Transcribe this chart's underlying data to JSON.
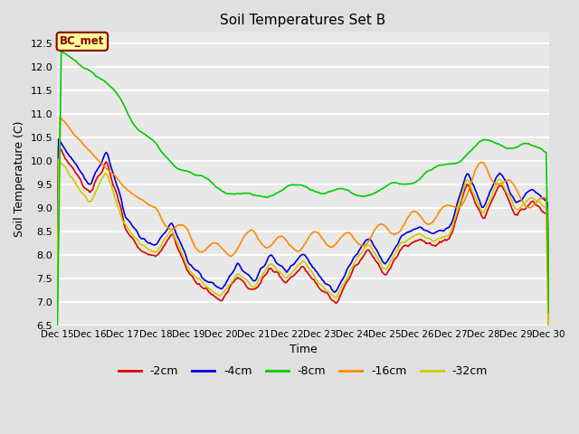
{
  "title": "Soil Temperatures Set B",
  "xlabel": "Time",
  "ylabel": "Soil Temperature (C)",
  "ylim": [
    6.5,
    12.75
  ],
  "xlim": [
    0,
    360
  ],
  "background_color": "#e0e0e0",
  "plot_bg_color": "#e8e8e8",
  "grid_color": "#ffffff",
  "annotation_text": "BC_met",
  "annotation_bg": "#ffff99",
  "annotation_border": "#8B0000",
  "annotation_text_color": "#8B0000",
  "series": [
    {
      "label": "-2cm",
      "color": "#dd0000",
      "linewidth": 1.2
    },
    {
      "label": "-4cm",
      "color": "#0000dd",
      "linewidth": 1.2
    },
    {
      "label": "-8cm",
      "color": "#00cc00",
      "linewidth": 1.2
    },
    {
      "label": "-16cm",
      "color": "#ff8800",
      "linewidth": 1.2
    },
    {
      "label": "-32cm",
      "color": "#cccc00",
      "linewidth": 1.2
    }
  ],
  "xtick_labels": [
    "Dec 15",
    "Dec 16",
    "Dec 17",
    "Dec 18",
    "Dec 19",
    "Dec 20",
    "Dec 21",
    "Dec 22",
    "Dec 23",
    "Dec 24",
    "Dec 25",
    "Dec 26",
    "Dec 27",
    "Dec 28",
    "Dec 29",
    "Dec 30"
  ],
  "xtick_positions": [
    0,
    24,
    48,
    72,
    96,
    120,
    144,
    168,
    192,
    216,
    240,
    264,
    288,
    312,
    336,
    360
  ],
  "ytick_values": [
    6.5,
    7.0,
    7.5,
    8.0,
    8.5,
    9.0,
    9.5,
    10.0,
    10.5,
    11.0,
    11.5,
    12.0,
    12.5
  ]
}
